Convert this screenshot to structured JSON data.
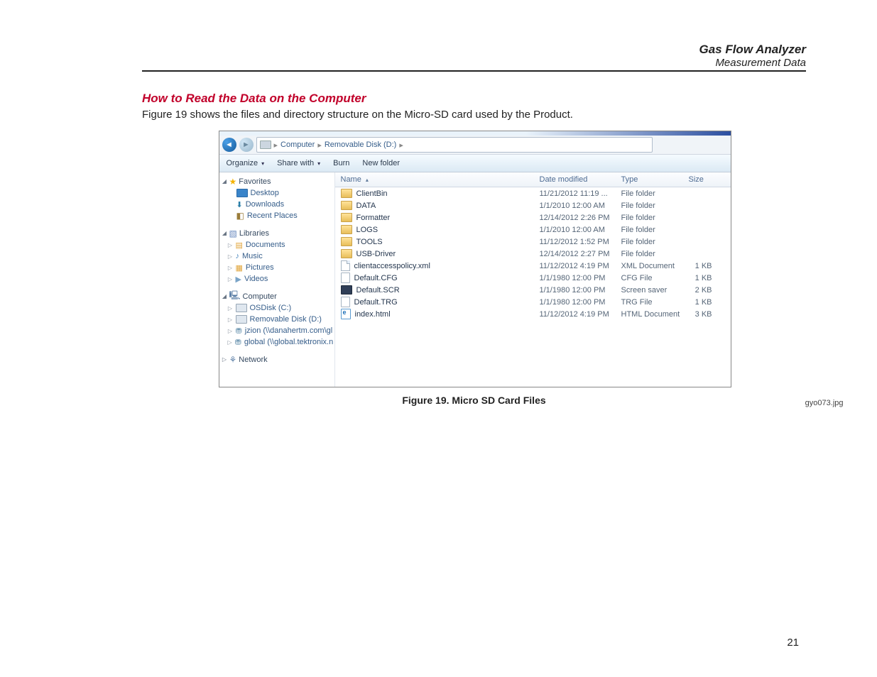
{
  "doc": {
    "header_title": "Gas Flow Analyzer",
    "header_sub": "Measurement Data",
    "section_title": "How to Read the Data on the Computer",
    "section_text": "Figure 19 shows the files and directory structure on the Micro-SD card used by the Product.",
    "figure_caption": "Figure 19. Micro SD Card Files",
    "image_ref": "gyo073.jpg",
    "page_number": "21"
  },
  "explorer": {
    "crumbs": {
      "root": "Computer",
      "drive": "Removable Disk (D:)"
    },
    "toolbar": {
      "organize": "Organize",
      "share_with": "Share with",
      "burn": "Burn",
      "new_folder": "New folder"
    },
    "columns": {
      "name": "Name",
      "date": "Date modified",
      "type": "Type",
      "size": "Size"
    },
    "sidebar": {
      "favorites_label": "Favorites",
      "desktop": "Desktop",
      "downloads": "Downloads",
      "recent": "Recent Places",
      "libraries_label": "Libraries",
      "documents": "Documents",
      "music": "Music",
      "pictures": "Pictures",
      "videos": "Videos",
      "computer_label": "Computer",
      "osdisk": "OSDisk (C:)",
      "removable": "Removable Disk (D:)",
      "netdrive1": "jzion (\\\\danahertm.com\\gl",
      "netdrive2": "global (\\\\global.tektronix.n",
      "network_label": "Network"
    },
    "files": [
      {
        "icon": "folder",
        "name": "ClientBin",
        "date": "11/21/2012 11:19 ...",
        "type": "File folder",
        "size": ""
      },
      {
        "icon": "folder",
        "name": "DATA",
        "date": "1/1/2010 12:00 AM",
        "type": "File folder",
        "size": ""
      },
      {
        "icon": "folder",
        "name": "Formatter",
        "date": "12/14/2012 2:26 PM",
        "type": "File folder",
        "size": ""
      },
      {
        "icon": "folder",
        "name": "LOGS",
        "date": "1/1/2010 12:00 AM",
        "type": "File folder",
        "size": ""
      },
      {
        "icon": "folder",
        "name": "TOOLS",
        "date": "11/12/2012 1:52 PM",
        "type": "File folder",
        "size": ""
      },
      {
        "icon": "folder",
        "name": "USB-Driver",
        "date": "12/14/2012 2:27 PM",
        "type": "File folder",
        "size": ""
      },
      {
        "icon": "xml",
        "name": "clientaccesspolicy.xml",
        "date": "11/12/2012 4:19 PM",
        "type": "XML Document",
        "size": "1 KB"
      },
      {
        "icon": "file",
        "name": "Default.CFG",
        "date": "1/1/1980 12:00 PM",
        "type": "CFG File",
        "size": "1 KB"
      },
      {
        "icon": "scr",
        "name": "Default.SCR",
        "date": "1/1/1980 12:00 PM",
        "type": "Screen saver",
        "size": "2 KB"
      },
      {
        "icon": "file",
        "name": "Default.TRG",
        "date": "1/1/1980 12:00 PM",
        "type": "TRG File",
        "size": "1 KB"
      },
      {
        "icon": "html",
        "name": "index.html",
        "date": "11/12/2012 4:19 PM",
        "type": "HTML Document",
        "size": "3 KB"
      }
    ]
  }
}
